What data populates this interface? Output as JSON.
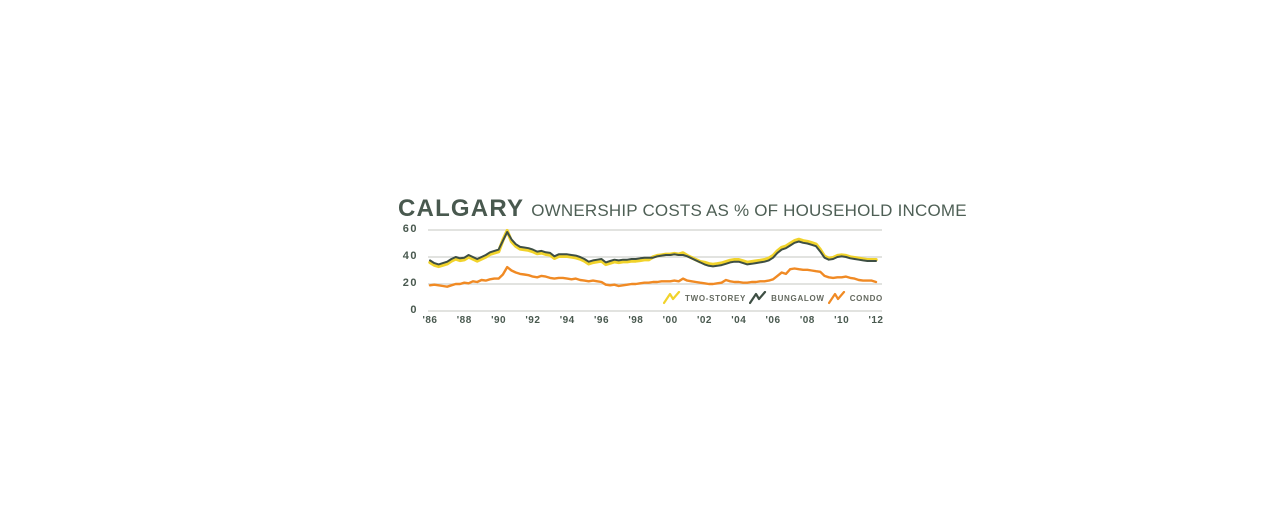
{
  "header": {
    "city": "CALGARY",
    "subtitle": "OWNERSHIP COSTS AS % OF HOUSEHOLD INCOME"
  },
  "colors": {
    "background": "#ffffff",
    "title_text": "#49594f",
    "axis_label_text": "#49594f",
    "legend_text": "#64695f",
    "gridline": "#d9dad6",
    "two_storey": "#f1d32b",
    "bungalow": "#3e4f44",
    "condo": "#f08a24"
  },
  "chart_data": {
    "type": "line",
    "title": "CALGARY OWNERSHIP COSTS AS % OF HOUSEHOLD INCOME",
    "xlabel": "",
    "ylabel": "",
    "x_start_year": 1986,
    "x_end_year": 2012,
    "points_per_year": 4,
    "x_tick_labels": [
      "'86",
      "'88",
      "'90",
      "'92",
      "'94",
      "'96",
      "'98",
      "'00",
      "'02",
      "'04",
      "'06",
      "'08",
      "'10",
      "'12"
    ],
    "y_ticks": [
      0,
      20,
      40,
      60
    ],
    "ylim": [
      0,
      65
    ],
    "grid": "horizontal",
    "legend_position": "bottom-right-inside",
    "series": [
      {
        "name": "TWO-STOREY",
        "color": "#f1d32b",
        "stroke_width": 3.4,
        "values": [
          36,
          34,
          33,
          34,
          35,
          37,
          38.5,
          37.5,
          38,
          40,
          38.5,
          37,
          38.5,
          40,
          42,
          43,
          44,
          52.5,
          59.5,
          51.5,
          48,
          46,
          45.5,
          45,
          44,
          42.5,
          43,
          42,
          41.5,
          39,
          40.5,
          40.5,
          40.5,
          40,
          39.5,
          38.5,
          37,
          35,
          36,
          36.5,
          37,
          34.5,
          35.5,
          36.5,
          36,
          36.5,
          36.5,
          37,
          37,
          37.5,
          38,
          38,
          40,
          41,
          41.5,
          42,
          42,
          42.5,
          42,
          43,
          41,
          39.5,
          38,
          36.5,
          36,
          35,
          34.5,
          35,
          35.5,
          36.5,
          37.5,
          38,
          38,
          37,
          36,
          36.5,
          37,
          37.5,
          38,
          39,
          41,
          44.5,
          47,
          48,
          50,
          52,
          53,
          52,
          51.5,
          50.5,
          49.5,
          45.5,
          40.5,
          39,
          39.5,
          41,
          41.5,
          41,
          40,
          39.5,
          39,
          38.5,
          38,
          38,
          38
        ]
      },
      {
        "name": "BUNGALOW",
        "color": "#3e4f44",
        "stroke_width": 2,
        "values": [
          37.5,
          35.5,
          34.5,
          35.5,
          36.5,
          38.5,
          40,
          39,
          39.5,
          41.5,
          40,
          38.5,
          40,
          41.5,
          43.5,
          44.5,
          45.5,
          52,
          58.5,
          53,
          49.5,
          47.5,
          47,
          46.5,
          45.5,
          44,
          44.5,
          43.5,
          43,
          40.5,
          42,
          42,
          42,
          41.5,
          41,
          40,
          38.5,
          36.5,
          37.5,
          38,
          38.5,
          36,
          37,
          38,
          37.5,
          38,
          38,
          38.5,
          38.5,
          39,
          39.5,
          39.5,
          39.5,
          40.5,
          41,
          41.5,
          41.5,
          42,
          41.5,
          41.5,
          40.5,
          39,
          37.5,
          36,
          34.5,
          33.5,
          33,
          33.5,
          34,
          35,
          36,
          36.5,
          36.5,
          35.5,
          34.5,
          35,
          35.5,
          36,
          36.5,
          37.5,
          39.5,
          43,
          45.5,
          46.5,
          48.5,
          50.5,
          51.5,
          50.5,
          50,
          49,
          48,
          44,
          39.5,
          38,
          38.5,
          40,
          40.5,
          40,
          39,
          38.5,
          38,
          37.5,
          37,
          37,
          37
        ]
      },
      {
        "name": "CONDO",
        "color": "#f08a24",
        "stroke_width": 2.4,
        "values": [
          19,
          19.5,
          19,
          18.5,
          18,
          19,
          20,
          20,
          21,
          20.5,
          22,
          21.5,
          23,
          22.5,
          23.5,
          24,
          24,
          27,
          32.5,
          30,
          28.5,
          27.5,
          27,
          26.5,
          25.5,
          25,
          26,
          25.5,
          24.5,
          24,
          24.5,
          24.5,
          24,
          23.5,
          24,
          23,
          22.5,
          22,
          22.5,
          22,
          21.5,
          19.5,
          19,
          19.5,
          18.5,
          19,
          19.5,
          20,
          20,
          20.5,
          21,
          21,
          21.5,
          21.5,
          22,
          22,
          22,
          22.5,
          22,
          24,
          22.5,
          22,
          21.5,
          21,
          20.5,
          20,
          20,
          20.5,
          21,
          23,
          22,
          21.5,
          21.5,
          21,
          21,
          21.5,
          21.5,
          22,
          22,
          22.5,
          23.5,
          26,
          28.5,
          27.5,
          31,
          31.5,
          31,
          30.5,
          30.5,
          30,
          29.5,
          29,
          26,
          25,
          24.5,
          25,
          25,
          25.5,
          24.5,
          24,
          23,
          22.5,
          22.5,
          22.5,
          21.5
        ]
      }
    ]
  }
}
